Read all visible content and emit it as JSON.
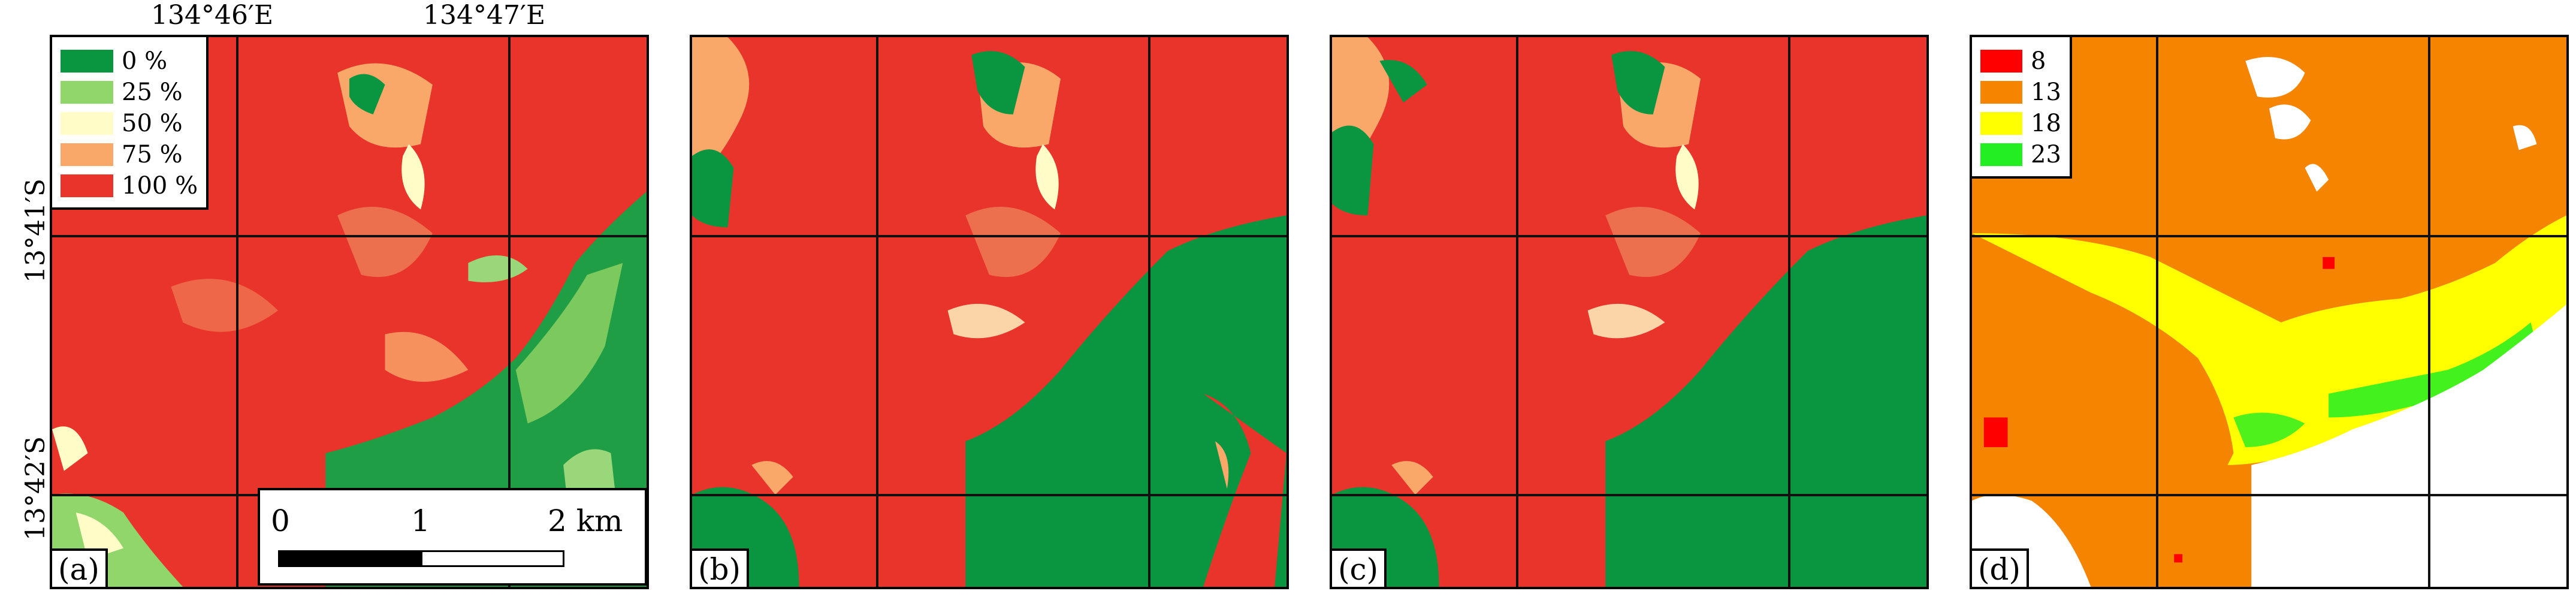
{
  "coordinates": {
    "lon_1": "134°46′E",
    "lon_2": "134°47′E",
    "lat_1": "13°41′S",
    "lat_2": "13°42′S"
  },
  "panels": [
    {
      "label": "(a)"
    },
    {
      "label": "(b)"
    },
    {
      "label": "(c)"
    },
    {
      "label": "(d)"
    }
  ],
  "legend_a": {
    "items": [
      {
        "label": "0 %",
        "color": "#0a9640"
      },
      {
        "label": "25 %",
        "color": "#90d66a"
      },
      {
        "label": "50 %",
        "color": "#fffcc8"
      },
      {
        "label": "75 %",
        "color": "#f9a86a"
      },
      {
        "label": "100 %",
        "color": "#e8342a"
      }
    ]
  },
  "legend_d": {
    "items": [
      {
        "label": "8",
        "color": "#ff0000"
      },
      {
        "label": "13",
        "color": "#f58400"
      },
      {
        "label": "18",
        "color": "#ffff00"
      },
      {
        "label": "23",
        "color": "#22ee22"
      }
    ]
  },
  "scalebar": {
    "label_0": "0",
    "label_1": "1",
    "label_2": "2 km"
  },
  "colors": {
    "burned": "#e8342a",
    "unburned": "#0a9640",
    "partial": "#f9a86a",
    "light": "#fffcc8",
    "d_background": "#f58400",
    "d_yellow": "#ffff00",
    "d_green": "#22ee22",
    "d_red": "#ff0000",
    "nodata": "#ffffff"
  }
}
